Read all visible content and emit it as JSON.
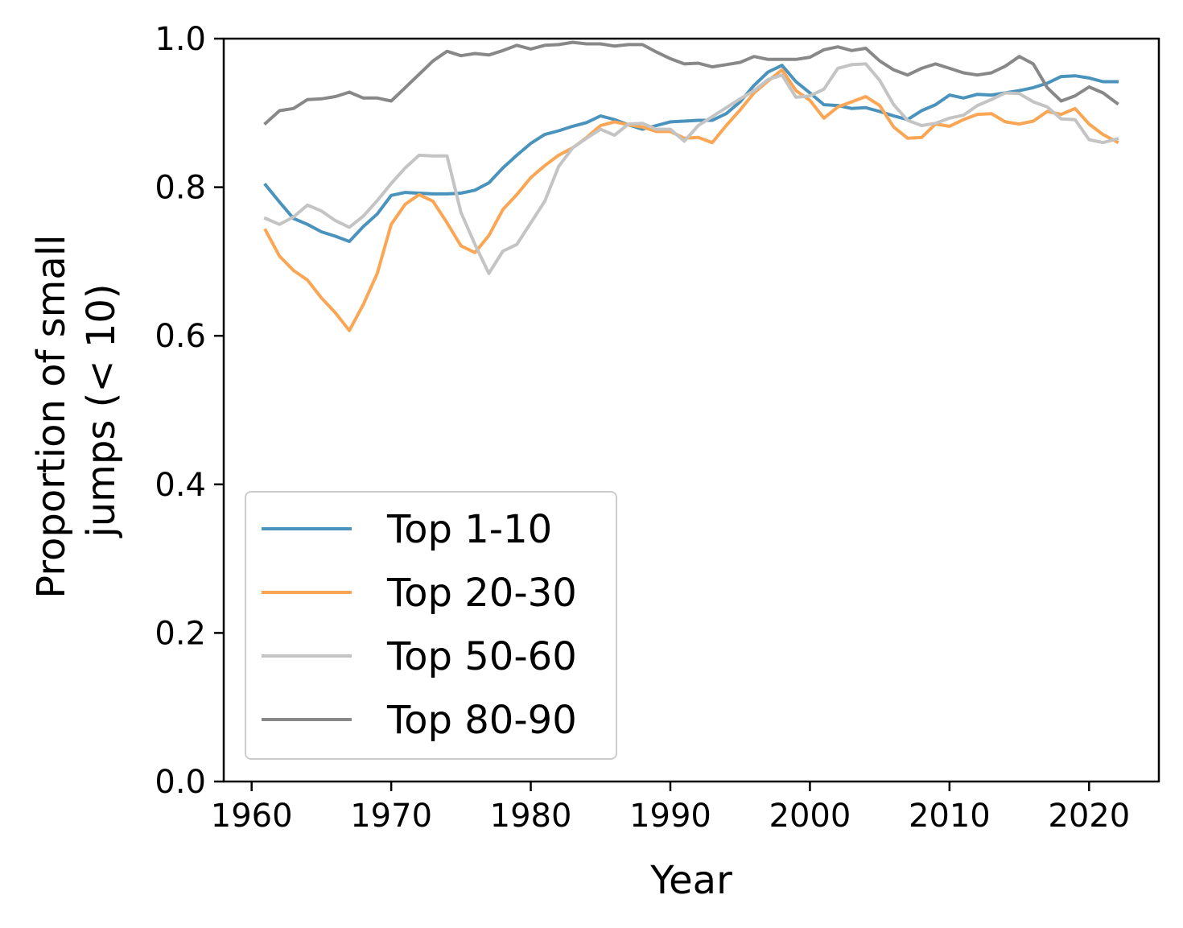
{
  "chart_data": {
    "type": "line",
    "xlabel": "Year",
    "ylabel": [
      "Proportion of small",
      "jumps (< 10)"
    ],
    "xlim": [
      1958,
      2025
    ],
    "ylim": [
      0,
      1
    ],
    "xticks": [
      1960,
      1970,
      1980,
      1990,
      2000,
      2010,
      2020
    ],
    "yticks": [
      0.0,
      0.2,
      0.4,
      0.6,
      0.8,
      1.0
    ],
    "xtick_labels": [
      "1960",
      "1970",
      "1980",
      "1990",
      "2000",
      "2010",
      "2020"
    ],
    "ytick_labels": [
      "0.0",
      "0.2",
      "0.4",
      "0.6",
      "0.8",
      "1.0"
    ],
    "grid": false,
    "legend_position": "lower-left",
    "x": [
      1961,
      1962,
      1963,
      1964,
      1965,
      1966,
      1967,
      1968,
      1969,
      1970,
      1971,
      1972,
      1973,
      1974,
      1975,
      1976,
      1977,
      1978,
      1979,
      1980,
      1981,
      1982,
      1983,
      1984,
      1985,
      1986,
      1987,
      1988,
      1989,
      1990,
      1991,
      1992,
      1993,
      1994,
      1995,
      1996,
      1997,
      1998,
      1999,
      2000,
      2001,
      2002,
      2003,
      2004,
      2005,
      2006,
      2007,
      2008,
      2009,
      2010,
      2011,
      2012,
      2013,
      2014,
      2015,
      2016,
      2017,
      2018,
      2019,
      2020,
      2021,
      2022
    ],
    "series": [
      {
        "name": "Top 1-10",
        "color": "#4a93bd",
        "values": [
          0.803,
          0.78,
          0.758,
          0.75,
          0.74,
          0.734,
          0.727,
          0.747,
          0.764,
          0.789,
          0.793,
          0.792,
          0.791,
          0.791,
          0.792,
          0.796,
          0.806,
          0.826,
          0.843,
          0.859,
          0.871,
          0.876,
          0.882,
          0.887,
          0.896,
          0.891,
          0.884,
          0.878,
          0.883,
          0.888,
          0.889,
          0.89,
          0.89,
          0.899,
          0.915,
          0.937,
          0.955,
          0.964,
          0.942,
          0.927,
          0.911,
          0.91,
          0.906,
          0.907,
          0.902,
          0.896,
          0.891,
          0.903,
          0.911,
          0.924,
          0.92,
          0.925,
          0.924,
          0.927,
          0.93,
          0.934,
          0.94,
          0.949,
          0.95,
          0.947,
          0.942,
          0.942
        ]
      },
      {
        "name": "Top 20-30",
        "color": "#fba655",
        "values": [
          0.742,
          0.707,
          0.688,
          0.675,
          0.651,
          0.631,
          0.607,
          0.642,
          0.684,
          0.75,
          0.777,
          0.79,
          0.781,
          0.752,
          0.721,
          0.712,
          0.735,
          0.77,
          0.79,
          0.813,
          0.829,
          0.843,
          0.853,
          0.867,
          0.883,
          0.888,
          0.884,
          0.881,
          0.875,
          0.875,
          0.866,
          0.867,
          0.86,
          0.883,
          0.904,
          0.927,
          0.943,
          0.958,
          0.93,
          0.917,
          0.893,
          0.908,
          0.915,
          0.922,
          0.91,
          0.881,
          0.866,
          0.867,
          0.885,
          0.882,
          0.891,
          0.898,
          0.899,
          0.888,
          0.885,
          0.889,
          0.902,
          0.898,
          0.906,
          0.885,
          0.871,
          0.861
        ]
      },
      {
        "name": "Top 50-60",
        "color": "#c4c4c4",
        "values": [
          0.758,
          0.75,
          0.76,
          0.776,
          0.768,
          0.755,
          0.746,
          0.761,
          0.782,
          0.805,
          0.826,
          0.843,
          0.842,
          0.842,
          0.766,
          0.723,
          0.684,
          0.714,
          0.723,
          0.752,
          0.781,
          0.828,
          0.853,
          0.866,
          0.878,
          0.87,
          0.885,
          0.886,
          0.878,
          0.878,
          0.862,
          0.883,
          0.895,
          0.907,
          0.919,
          0.93,
          0.945,
          0.951,
          0.921,
          0.923,
          0.932,
          0.96,
          0.965,
          0.966,
          0.944,
          0.911,
          0.89,
          0.883,
          0.886,
          0.893,
          0.897,
          0.91,
          0.918,
          0.927,
          0.926,
          0.915,
          0.908,
          0.892,
          0.891,
          0.864,
          0.86,
          0.865
        ]
      },
      {
        "name": "Top 80-90",
        "color": "#888888",
        "values": [
          0.886,
          0.903,
          0.906,
          0.918,
          0.919,
          0.922,
          0.928,
          0.92,
          0.92,
          0.916,
          0.934,
          0.952,
          0.97,
          0.983,
          0.977,
          0.98,
          0.978,
          0.984,
          0.991,
          0.986,
          0.991,
          0.992,
          0.995,
          0.993,
          0.993,
          0.99,
          0.992,
          0.992,
          0.982,
          0.973,
          0.966,
          0.967,
          0.962,
          0.965,
          0.968,
          0.976,
          0.972,
          0.972,
          0.972,
          0.975,
          0.985,
          0.989,
          0.984,
          0.987,
          0.97,
          0.958,
          0.951,
          0.96,
          0.966,
          0.96,
          0.954,
          0.951,
          0.954,
          0.963,
          0.976,
          0.966,
          0.934,
          0.916,
          0.923,
          0.935,
          0.927,
          0.913
        ]
      }
    ]
  }
}
